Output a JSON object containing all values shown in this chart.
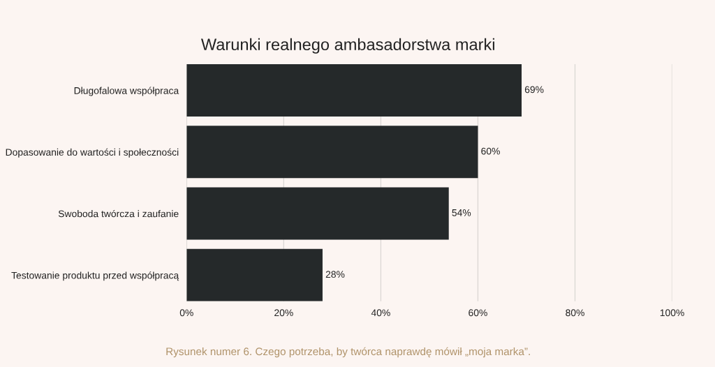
{
  "chart_data": {
    "type": "bar",
    "orientation": "horizontal",
    "title": "Warunki realnego ambasadorstwa marki",
    "categories": [
      "Długofalowa współpraca",
      "Dopasowanie do wartości i społeczności",
      "Swoboda twórcza i zaufanie",
      "Testowanie produktu przed współpracą"
    ],
    "values": [
      69,
      60,
      54,
      28
    ],
    "color": "#25292a",
    "value_labels": [
      "69%",
      "60%",
      "54%",
      "28%"
    ],
    "xlim": [
      0,
      100
    ],
    "xticks": [
      {
        "value": 0,
        "label": "0%"
      },
      {
        "value": 20,
        "label": "20%"
      },
      {
        "value": 40,
        "label": "40%"
      },
      {
        "value": 60,
        "label": "60%"
      },
      {
        "value": 80,
        "label": "80%"
      },
      {
        "value": 100,
        "label": "100%"
      }
    ],
    "grid": "x",
    "legend": false,
    "annotations": [
      "Rysunek numer 6. Czego potrzeba, by twórca naprawdę mówił „moja marka”."
    ]
  }
}
